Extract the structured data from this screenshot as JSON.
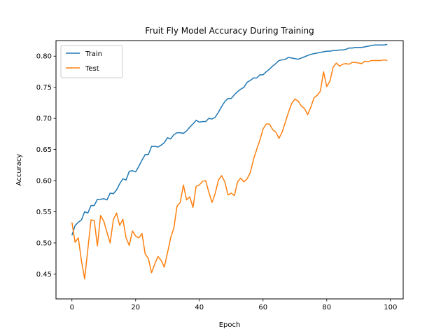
{
  "chart_data": {
    "type": "line",
    "title": "Fruit Fly Model Accuracy During Training",
    "xlabel": "Epoch",
    "ylabel": "Accuracy",
    "xlim": [
      -5,
      104
    ],
    "ylim": [
      0.41,
      0.825
    ],
    "xticks": [
      0,
      20,
      40,
      60,
      80,
      100
    ],
    "xtick_labels": [
      "0",
      "20",
      "40",
      "60",
      "80",
      "100"
    ],
    "yticks": [
      0.45,
      0.5,
      0.55,
      0.6,
      0.65,
      0.7,
      0.75,
      0.8
    ],
    "ytick_labels": [
      "0.45",
      "0.50",
      "0.55",
      "0.60",
      "0.65",
      "0.70",
      "0.75",
      "0.80"
    ],
    "grid": false,
    "legend_position": "upper-left",
    "x": [
      0,
      1,
      2,
      3,
      4,
      5,
      6,
      7,
      8,
      9,
      10,
      11,
      12,
      13,
      14,
      15,
      16,
      17,
      18,
      19,
      20,
      21,
      22,
      23,
      24,
      25,
      26,
      27,
      28,
      29,
      30,
      31,
      32,
      33,
      34,
      35,
      36,
      37,
      38,
      39,
      40,
      41,
      42,
      43,
      44,
      45,
      46,
      47,
      48,
      49,
      50,
      51,
      52,
      53,
      54,
      55,
      56,
      57,
      58,
      59,
      60,
      61,
      62,
      63,
      64,
      65,
      66,
      67,
      68,
      69,
      70,
      71,
      72,
      73,
      74,
      75,
      76,
      77,
      78,
      79,
      80,
      81,
      82,
      83,
      84,
      85,
      86,
      87,
      88,
      89,
      90,
      91,
      92,
      93,
      94,
      95,
      96,
      97,
      98,
      99
    ],
    "series": [
      {
        "name": "Train",
        "color": "#1f77b4",
        "values": [
          0.512,
          0.528,
          0.533,
          0.537,
          0.55,
          0.548,
          0.56,
          0.56,
          0.57,
          0.57,
          0.571,
          0.569,
          0.58,
          0.579,
          0.585,
          0.595,
          0.603,
          0.601,
          0.615,
          0.616,
          0.614,
          0.623,
          0.633,
          0.642,
          0.642,
          0.655,
          0.655,
          0.654,
          0.657,
          0.661,
          0.669,
          0.667,
          0.674,
          0.677,
          0.677,
          0.676,
          0.68,
          0.686,
          0.691,
          0.697,
          0.694,
          0.695,
          0.695,
          0.7,
          0.699,
          0.702,
          0.71,
          0.719,
          0.727,
          0.732,
          0.732,
          0.738,
          0.743,
          0.747,
          0.75,
          0.758,
          0.761,
          0.765,
          0.765,
          0.77,
          0.77,
          0.775,
          0.779,
          0.784,
          0.788,
          0.793,
          0.794,
          0.795,
          0.798,
          0.797,
          0.796,
          0.795,
          0.797,
          0.799,
          0.801,
          0.803,
          0.804,
          0.805,
          0.806,
          0.807,
          0.808,
          0.808,
          0.809,
          0.809,
          0.81,
          0.81,
          0.811,
          0.813,
          0.813,
          0.814,
          0.814,
          0.814,
          0.815,
          0.816,
          0.817,
          0.818,
          0.818,
          0.818,
          0.818,
          0.819
        ]
      },
      {
        "name": "Test",
        "color": "#ff7f0e",
        "values": [
          0.533,
          0.501,
          0.508,
          0.471,
          0.442,
          0.49,
          0.537,
          0.536,
          0.495,
          0.544,
          0.535,
          0.517,
          0.5,
          0.537,
          0.548,
          0.528,
          0.538,
          0.508,
          0.496,
          0.519,
          0.511,
          0.508,
          0.515,
          0.482,
          0.475,
          0.452,
          0.466,
          0.478,
          0.472,
          0.461,
          0.484,
          0.508,
          0.524,
          0.559,
          0.565,
          0.593,
          0.569,
          0.574,
          0.557,
          0.591,
          0.593,
          0.599,
          0.6,
          0.581,
          0.565,
          0.58,
          0.601,
          0.608,
          0.598,
          0.577,
          0.58,
          0.576,
          0.598,
          0.604,
          0.598,
          0.603,
          0.613,
          0.634,
          0.65,
          0.665,
          0.683,
          0.691,
          0.691,
          0.682,
          0.678,
          0.668,
          0.678,
          0.694,
          0.71,
          0.724,
          0.731,
          0.728,
          0.72,
          0.716,
          0.706,
          0.718,
          0.733,
          0.737,
          0.744,
          0.775,
          0.751,
          0.76,
          0.782,
          0.789,
          0.784,
          0.787,
          0.788,
          0.787,
          0.79,
          0.79,
          0.789,
          0.788,
          0.792,
          0.791,
          0.793,
          0.793,
          0.793,
          0.793,
          0.794,
          0.793
        ]
      }
    ]
  }
}
